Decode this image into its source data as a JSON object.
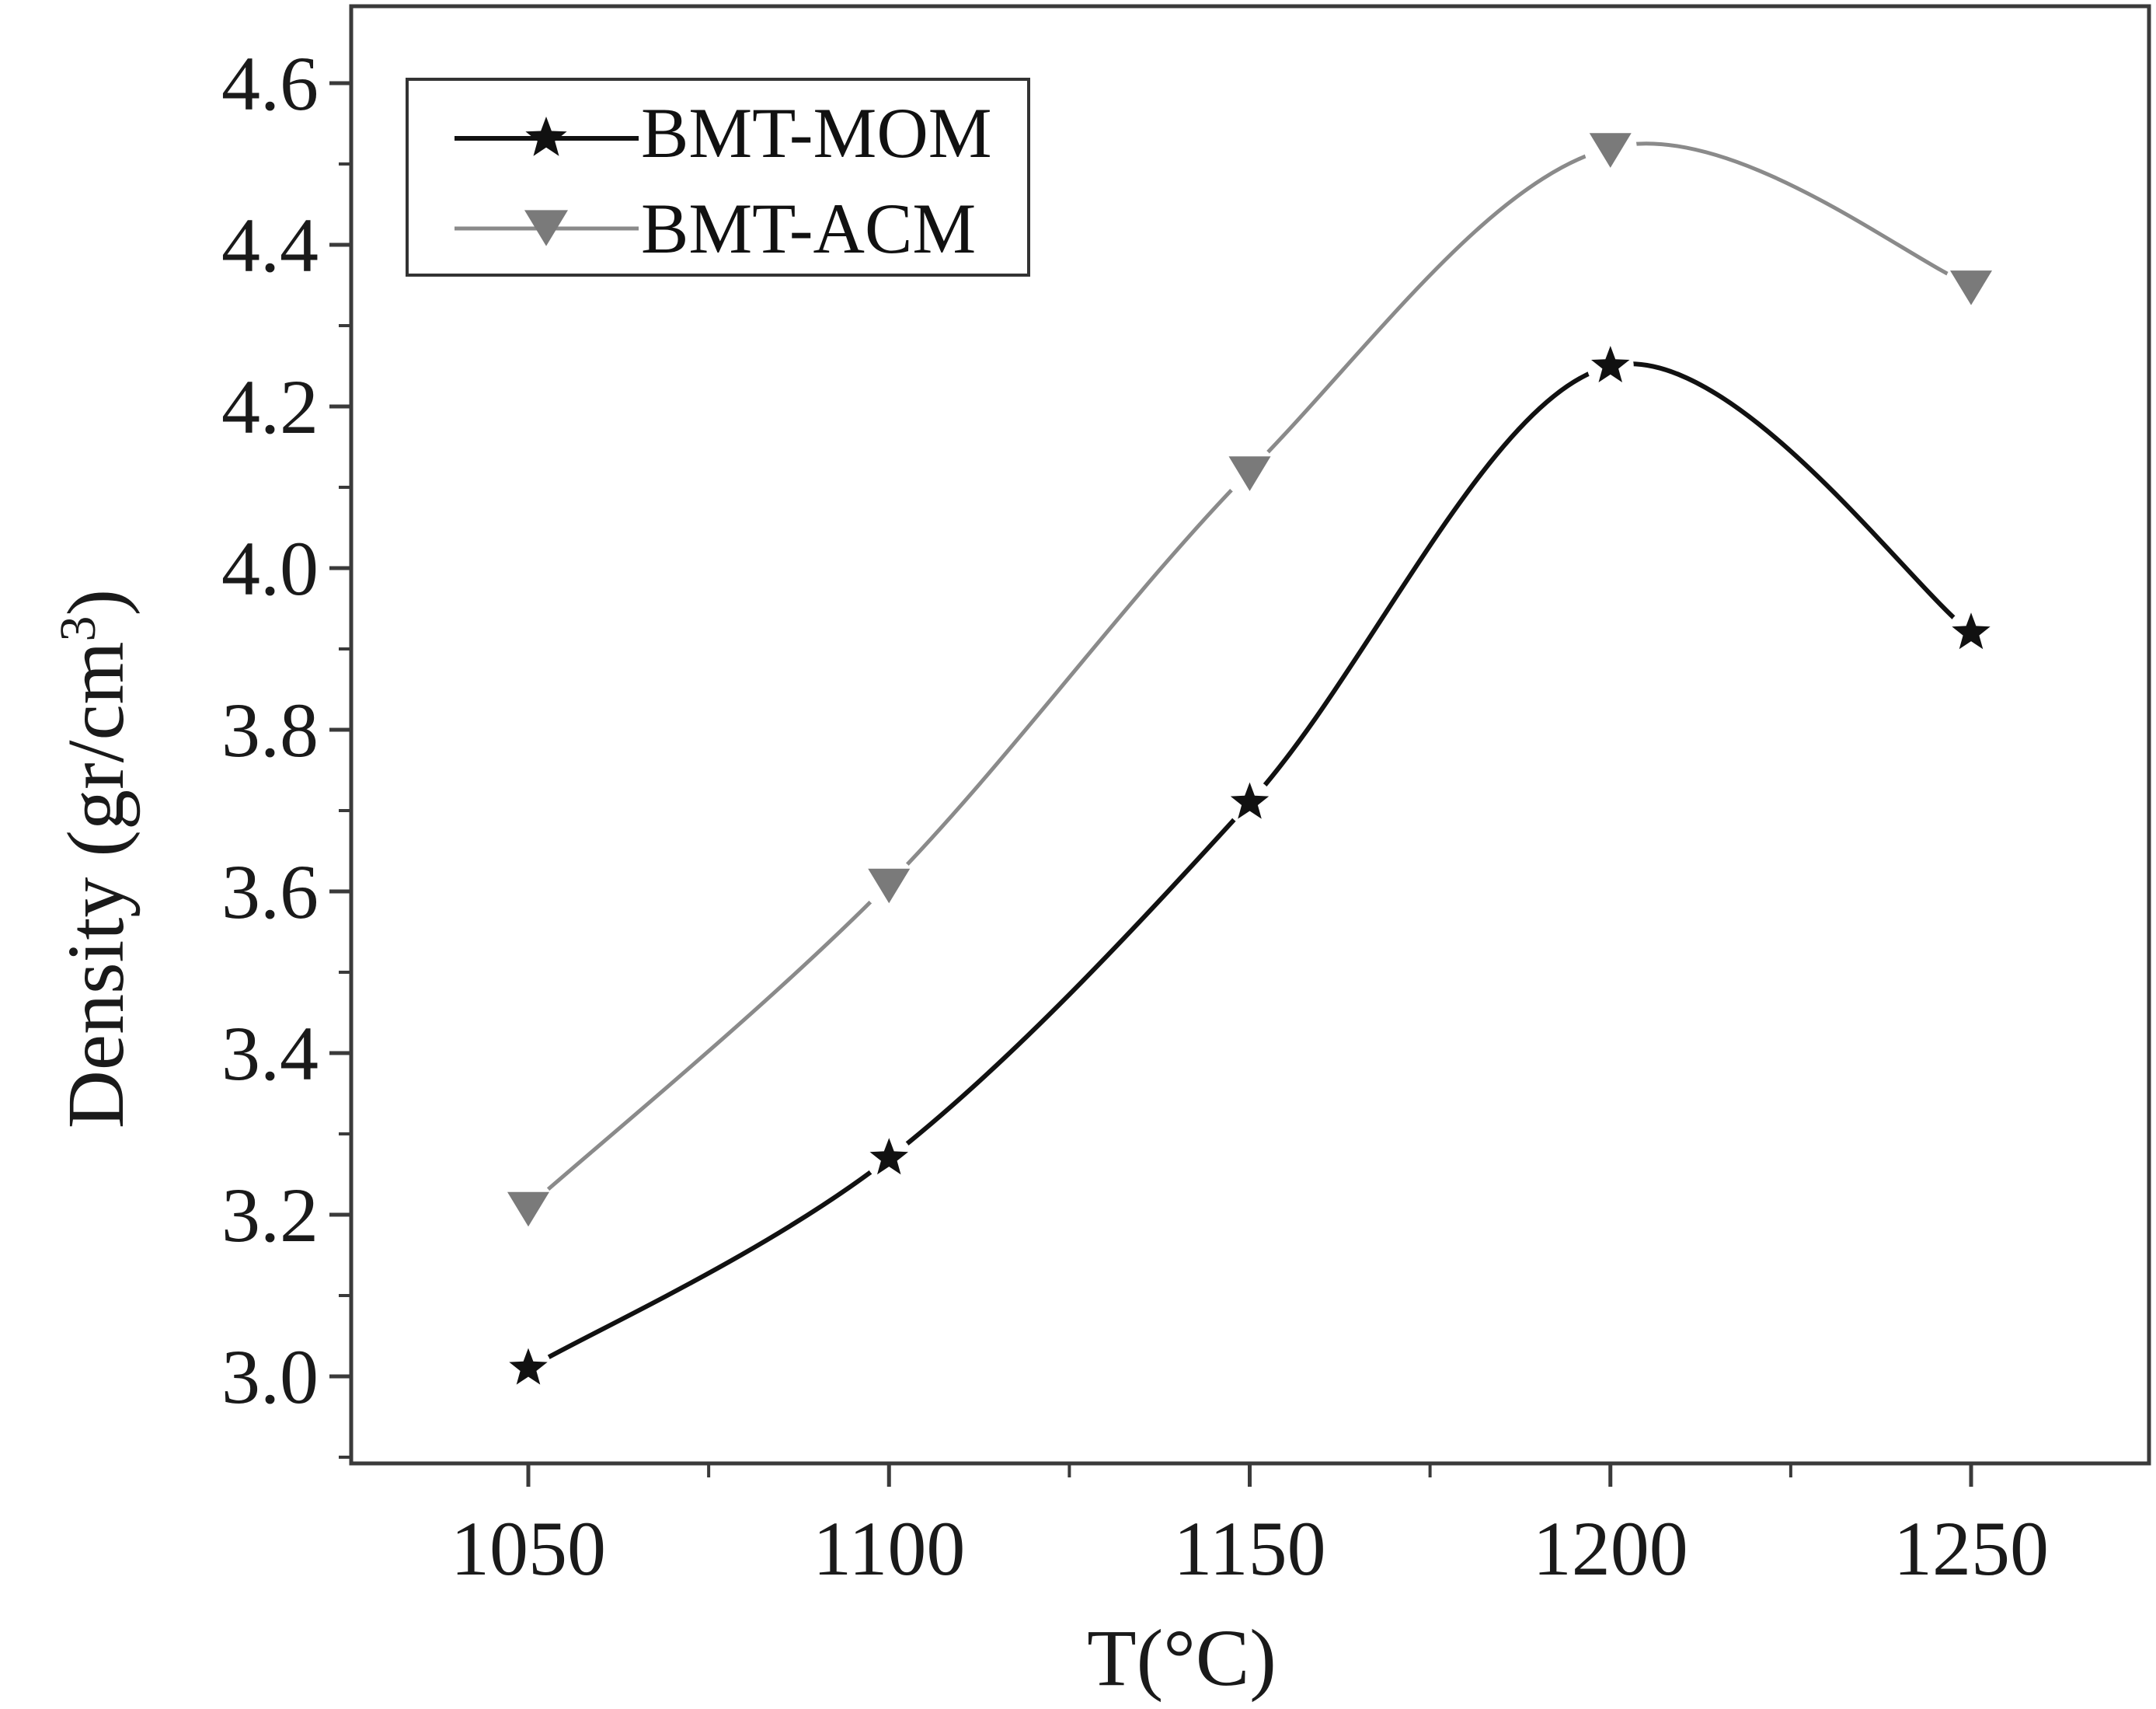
{
  "chart_data": {
    "type": "line",
    "xlabel": "T(°C)",
    "ylabel": "Density (gr/cm",
    "ylabel_superscript": "3",
    "ylabel_close": ")",
    "x": [
      1050,
      1100,
      1150,
      1200,
      1250
    ],
    "x_tick_labels": [
      "1050",
      "1100",
      "1150",
      "1200",
      "1250"
    ],
    "y_tick_labels": [
      "3.0",
      "3.2",
      "3.4",
      "3.6",
      "3.8",
      "4.0",
      "4.2",
      "4.4",
      "4.6"
    ],
    "y_ticks": [
      3.0,
      3.2,
      3.4,
      3.6,
      3.8,
      4.0,
      4.2,
      4.4,
      4.6
    ],
    "xlim": [
      1025,
      1275
    ],
    "ylim": [
      2.9,
      4.7
    ],
    "grid": false,
    "legend_position": "top-left",
    "series": [
      {
        "name": "BMT-MOM",
        "marker": "star",
        "color": "#111111",
        "values": [
          3.01,
          3.27,
          3.71,
          4.25,
          3.92
        ]
      },
      {
        "name": "BMT-ACM",
        "marker": "triangle-down",
        "color": "#7a7a7a",
        "values": [
          3.21,
          3.61,
          4.12,
          4.52,
          4.35
        ]
      }
    ]
  }
}
